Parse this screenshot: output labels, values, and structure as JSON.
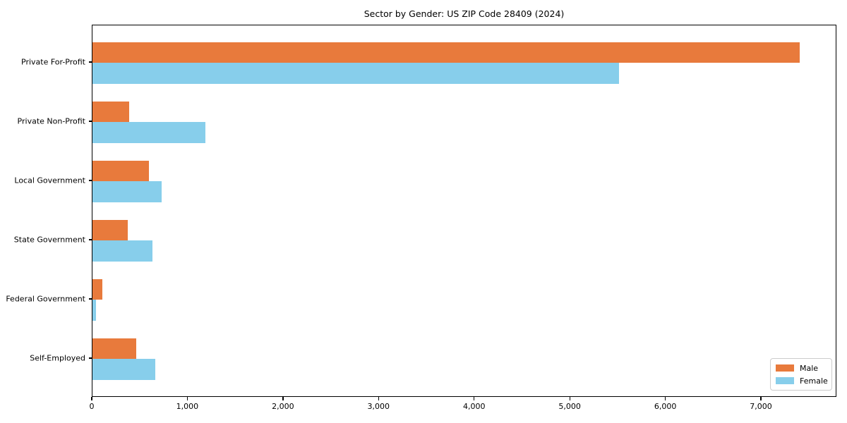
{
  "chart_data": {
    "type": "bar",
    "orientation": "horizontal",
    "title": "Sector by Gender: US ZIP Code 28409 (2024)",
    "categories": [
      "Private For-Profit",
      "Private Non-Profit",
      "Local Government",
      "State Government",
      "Federal Government",
      "Self-Employed"
    ],
    "series": [
      {
        "name": "Male",
        "color": "#e87a3c",
        "values": [
          7400,
          380,
          590,
          370,
          100,
          460
        ]
      },
      {
        "name": "Female",
        "color": "#87ceeb",
        "values": [
          5510,
          1180,
          720,
          630,
          35,
          660
        ]
      }
    ],
    "xlabel": "",
    "ylabel": "",
    "xlim": [
      0,
      7790
    ],
    "x_ticks": [
      0,
      1000,
      2000,
      3000,
      4000,
      5000,
      6000,
      7000
    ],
    "x_tick_labels": [
      "0",
      "1,000",
      "2,000",
      "3,000",
      "4,000",
      "5,000",
      "6,000",
      "7,000"
    ],
    "legend_position": "lower right",
    "grid": false,
    "frame": true
  }
}
